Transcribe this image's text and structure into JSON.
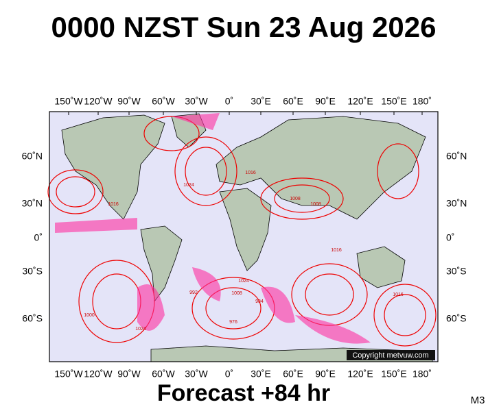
{
  "header": {
    "title": "0000 NZST Sun 23 Aug 2026"
  },
  "map": {
    "top_labels": [
      "150˚W",
      "120˚W",
      "90˚W",
      "60˚W",
      "30˚W",
      "0˚",
      "30˚E",
      "60˚E",
      "90˚E",
      "120˚E",
      "150˚E",
      "180˚"
    ],
    "bottom_labels": [
      "150˚W",
      "120˚W",
      "90˚W",
      "60˚W",
      "30˚W",
      "0˚",
      "30˚E",
      "60˚E",
      "90˚E",
      "120˚E",
      "150˚E",
      "180˚"
    ],
    "left_labels": [
      "60˚N",
      "30˚N",
      "0˚",
      "30˚S",
      "60˚S"
    ],
    "right_labels": [
      "60˚N",
      "30˚N",
      "0˚",
      "30˚S",
      "60˚S"
    ],
    "contour_labels": [
      "1016",
      "1024",
      "1016",
      "1008",
      "1008",
      "1016",
      "1024",
      "1008",
      "1000",
      "992",
      "984",
      "976",
      "1024",
      "1016"
    ],
    "copyright": "Copyright metvuw.com"
  },
  "footer": {
    "forecast": "Forecast +84 hr",
    "model": "M3"
  }
}
